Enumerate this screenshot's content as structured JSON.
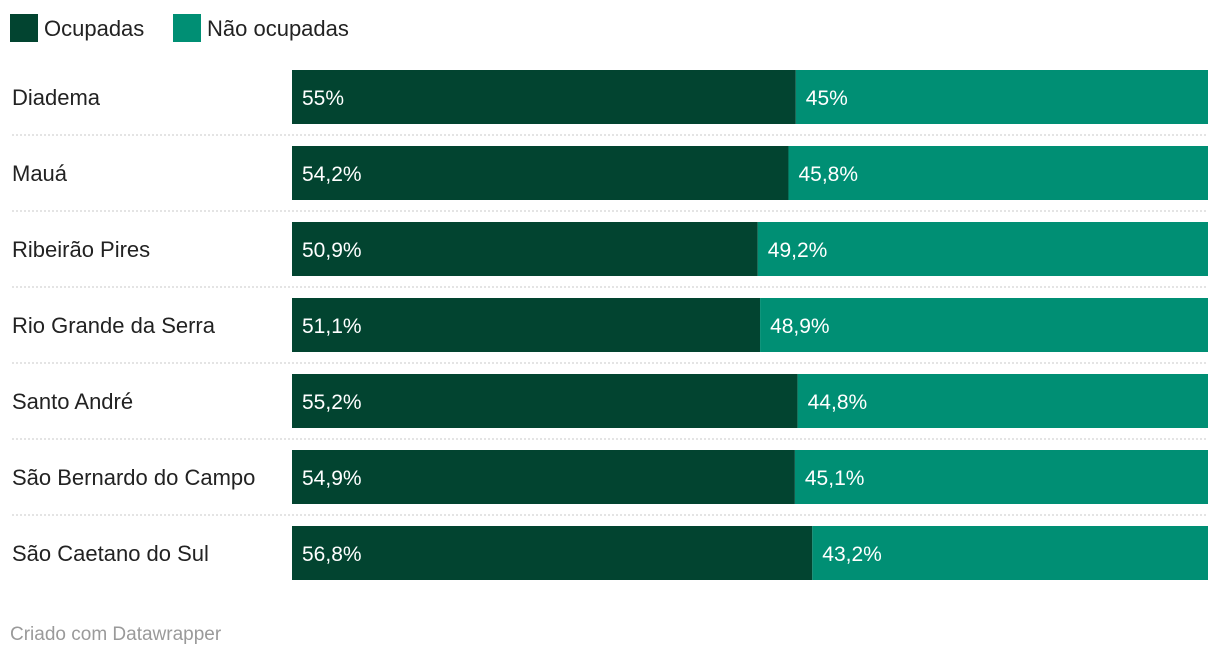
{
  "chart_data": {
    "type": "bar",
    "orientation": "horizontal",
    "stacked": true,
    "categories": [
      "Diadema",
      "Mauá",
      "Ribeirão Pires",
      "Rio Grande da Serra",
      "Santo André",
      "São Bernardo do Campo",
      "São Caetano do Sul"
    ],
    "series": [
      {
        "name": "Ocupadas",
        "color": "#024430",
        "values": [
          55,
          54.2,
          50.9,
          51.1,
          55.2,
          54.9,
          56.8
        ],
        "labels": [
          "55%",
          "54,2%",
          "50,9%",
          "51,1%",
          "55,2%",
          "54,9%",
          "56,8%"
        ]
      },
      {
        "name": "Não ocupadas",
        "color": "#008f74",
        "values": [
          45,
          45.8,
          49.2,
          48.9,
          44.8,
          45.1,
          43.2
        ],
        "labels": [
          "45%",
          "45,8%",
          "49,2%",
          "48,9%",
          "44,8%",
          "45,1%",
          "43,2%"
        ]
      }
    ],
    "title": "",
    "xlabel": "",
    "ylabel": "",
    "legend_position": "top-left"
  },
  "footer": {
    "credit": "Criado com Datawrapper"
  }
}
